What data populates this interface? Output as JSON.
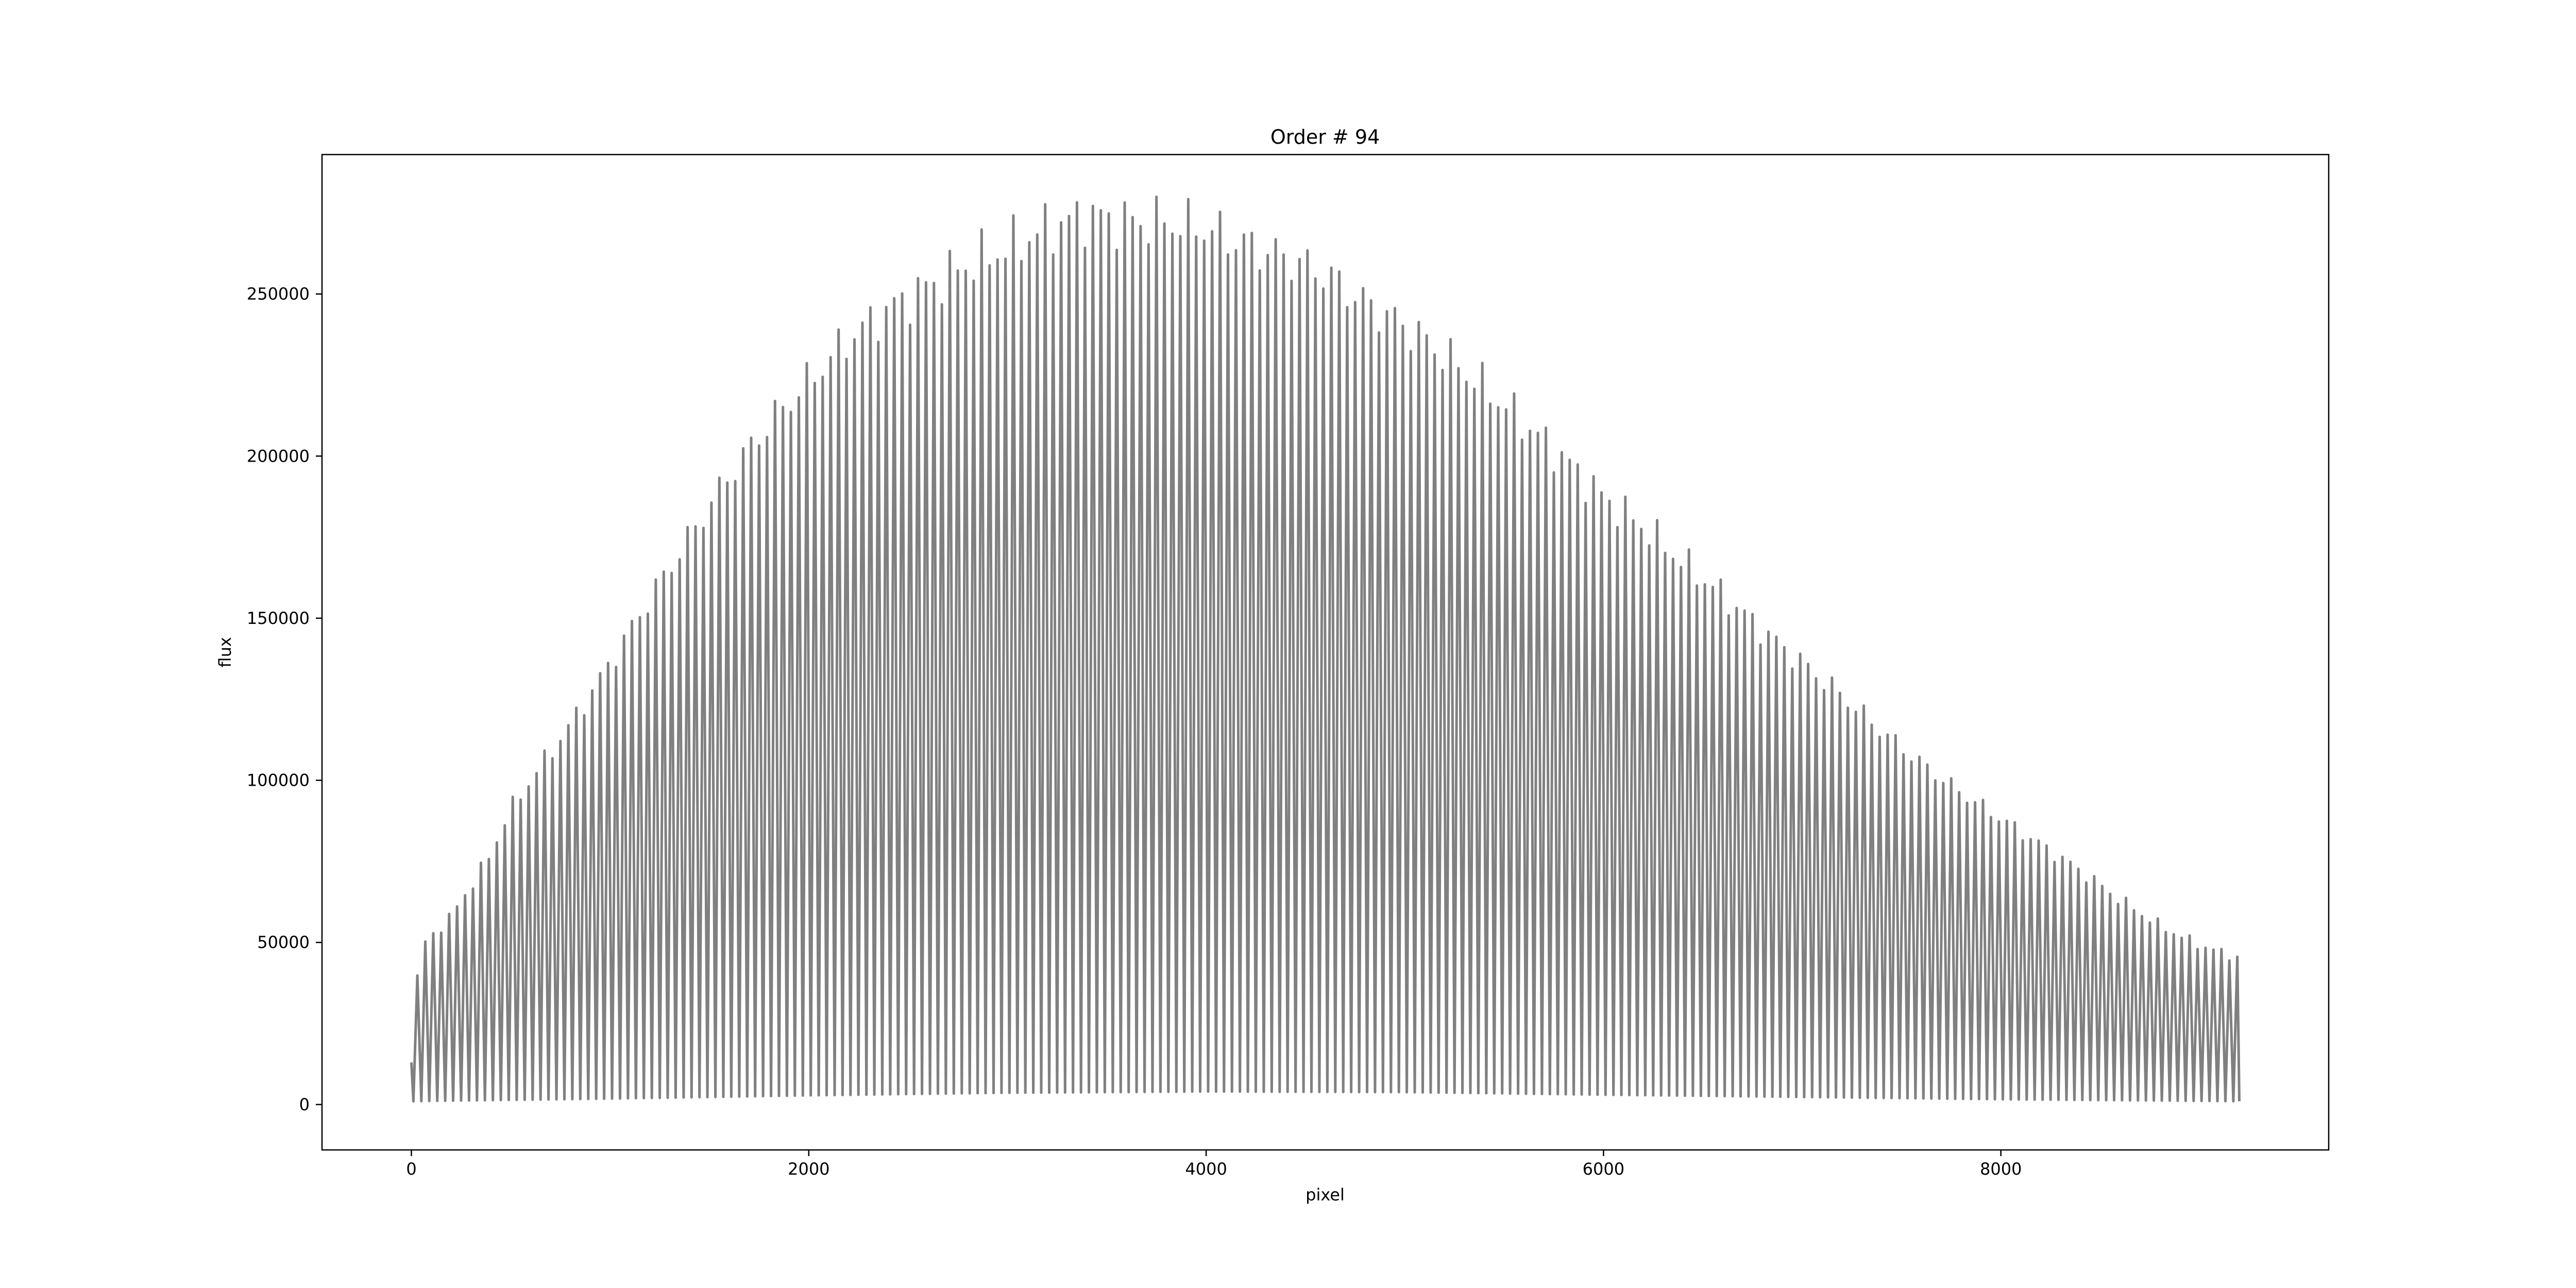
{
  "chart_data": {
    "type": "line",
    "title": "Order # 94",
    "xlabel": "pixel",
    "ylabel": "flux",
    "xlim": [
      -450,
      9650
    ],
    "ylim": [
      -14000,
      293000
    ],
    "x_ticks": [
      0,
      2000,
      4000,
      6000,
      8000
    ],
    "x_tick_labels": [
      "0",
      "2000",
      "4000",
      "6000",
      "8000"
    ],
    "y_ticks": [
      0,
      50000,
      100000,
      150000,
      200000,
      250000
    ],
    "y_tick_labels": [
      "0",
      "50000",
      "100000",
      "150000",
      "200000",
      "250000"
    ],
    "grid": false,
    "legend": "none",
    "line_color": "#808080",
    "series": [
      {
        "x_range": [
          0,
          9200
        ],
        "peak_spacing": 40,
        "gap_x": [
          455,
          475
        ],
        "peak_envelope": {
          "x": [
            0,
            40,
            200,
            400,
            480,
            600,
            800,
            1000,
            1200,
            1400,
            1600,
            1800,
            2000,
            2200,
            2400,
            2600,
            2800,
            3000,
            3200,
            3400,
            3600,
            3800,
            4000,
            4200,
            4400,
            4600,
            4800,
            5000,
            5200,
            5400,
            5600,
            5800,
            6000,
            6200,
            6400,
            6600,
            6800,
            7000,
            7200,
            7400,
            7600,
            7800,
            8000,
            8200,
            8400,
            8600,
            8800,
            9000,
            9200
          ],
          "y": [
            13000,
            48000,
            58000,
            77000,
            89000,
            100000,
            117000,
            136000,
            156000,
            175000,
            194000,
            210000,
            223000,
            236000,
            245000,
            252000,
            259000,
            264000,
            270000,
            274000,
            272000,
            272000,
            270000,
            265000,
            261000,
            256000,
            247000,
            240000,
            231000,
            221000,
            210000,
            199000,
            187000,
            178000,
            167000,
            157000,
            146000,
            136000,
            126000,
            115000,
            105000,
            96000,
            88000,
            80000,
            72000,
            63000,
            55000,
            49000,
            45000
          ]
        },
        "baseline_envelope": {
          "x": [
            0,
            1000,
            2000,
            3000,
            4000,
            5000,
            6000,
            7000,
            8000,
            9200
          ],
          "y": [
            1000,
            1800,
            2800,
            3600,
            4000,
            3800,
            3000,
            2300,
            1600,
            1000
          ]
        }
      }
    ]
  }
}
